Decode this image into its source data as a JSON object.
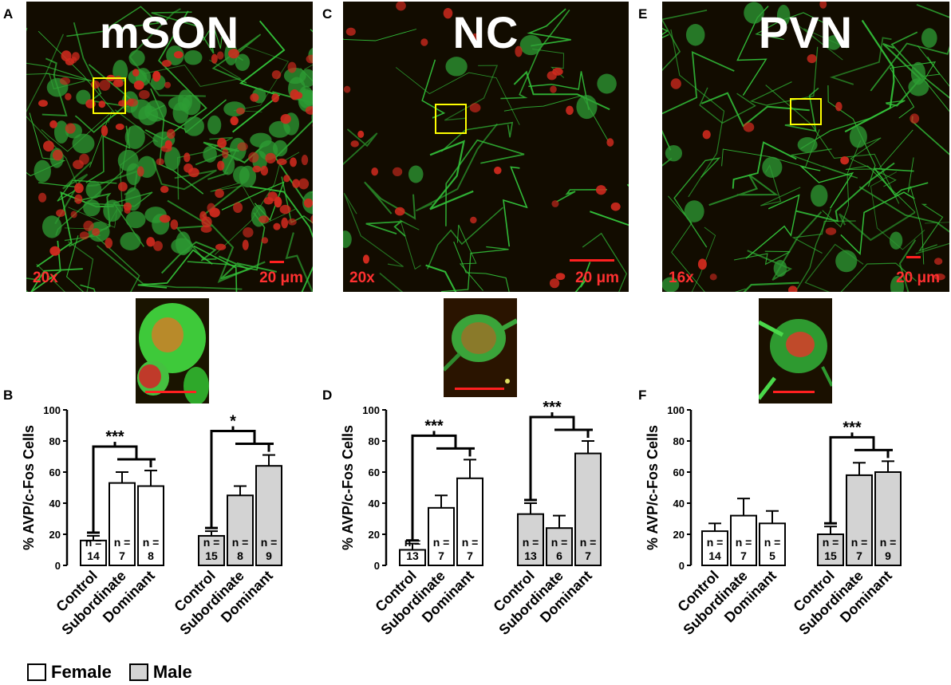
{
  "panels": {
    "A": {
      "letter": "A",
      "title": "mSON",
      "magnification": "20x",
      "scale_label": "20 μm"
    },
    "C": {
      "letter": "C",
      "title": "NC",
      "magnification": "20x",
      "scale_label": "20 μm"
    },
    "E": {
      "letter": "E",
      "title": "PVN",
      "magnification": "16x",
      "scale_label": "20 μm"
    },
    "B": {
      "letter": "B"
    },
    "D": {
      "letter": "D"
    },
    "F": {
      "letter": "F"
    }
  },
  "legend": {
    "female": "Female",
    "male": "Male"
  },
  "colors": {
    "female_fill": "#ffffff",
    "male_fill": "#d3d3d3",
    "scale_red": "#ff2020",
    "box_yellow": "#ffff00"
  },
  "chart_data": [
    {
      "type": "bar",
      "panel": "B",
      "ylabel": "% AVP/c-Fos Cells",
      "ylim": [
        0,
        100
      ],
      "yticks": [
        0,
        20,
        40,
        60,
        80,
        100
      ],
      "categories": [
        "Control",
        "Subordinate",
        "Dominant",
        "Control",
        "Subordinate",
        "Dominant"
      ],
      "groups": [
        "Female",
        "Female",
        "Female",
        "Male",
        "Male",
        "Male"
      ],
      "values": [
        16,
        53,
        51,
        19,
        45,
        64
      ],
      "errors": [
        3,
        7,
        10,
        3,
        6,
        7
      ],
      "n_labels": [
        "n =\n14",
        "n =\n7",
        "n =\n8",
        "n =\n15",
        "n =\n8",
        "n =\n9"
      ],
      "significance": [
        {
          "group": "Female",
          "label": "***"
        },
        {
          "group": "Male",
          "label": "*"
        }
      ]
    },
    {
      "type": "bar",
      "panel": "D",
      "ylabel": "% AVP/c-Fos Cells",
      "ylim": [
        0,
        100
      ],
      "yticks": [
        0,
        20,
        40,
        60,
        80,
        100
      ],
      "categories": [
        "Control",
        "Subordinate",
        "Dominant",
        "Control",
        "Subordinate",
        "Dominant"
      ],
      "groups": [
        "Female",
        "Female",
        "Female",
        "Male",
        "Male",
        "Male"
      ],
      "values": [
        10,
        37,
        56,
        33,
        24,
        72
      ],
      "errors": [
        4,
        8,
        12,
        7,
        8,
        8
      ],
      "n_labels": [
        "n =\n13",
        "n =\n7",
        "n =\n7",
        "n =\n13",
        "n =\n6",
        "n =\n7"
      ],
      "significance": [
        {
          "group": "Female",
          "label": "***"
        },
        {
          "group": "Male",
          "label": "***"
        }
      ]
    },
    {
      "type": "bar",
      "panel": "F",
      "ylabel": "% AVP/c-Fos Cells",
      "ylim": [
        0,
        100
      ],
      "yticks": [
        0,
        20,
        40,
        60,
        80,
        100
      ],
      "categories": [
        "Control",
        "Subordinate",
        "Dominant",
        "Control",
        "Subordinate",
        "Dominant"
      ],
      "groups": [
        "Female",
        "Female",
        "Female",
        "Male",
        "Male",
        "Male"
      ],
      "values": [
        22,
        32,
        27,
        20,
        58,
        60
      ],
      "errors": [
        5,
        11,
        8,
        5,
        8,
        7
      ],
      "n_labels": [
        "n =\n14",
        "n =\n7",
        "n =\n5",
        "n =\n15",
        "n =\n7",
        "n =\n9"
      ],
      "significance": [
        {
          "group": "Male",
          "label": "***"
        }
      ]
    }
  ]
}
